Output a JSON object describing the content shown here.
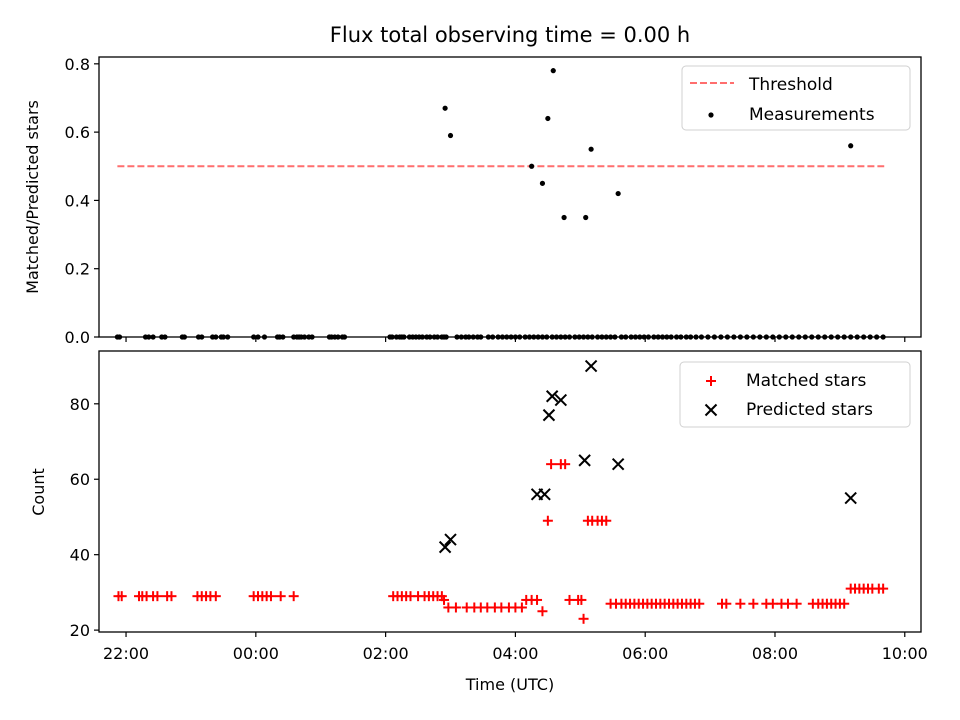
{
  "chart_data": [
    {
      "type": "scatter",
      "title": "Flux total observing time = 0.00 h",
      "xlabel": "",
      "ylabel": "Matched/Predicted stars",
      "ylim": [
        0,
        0.82
      ],
      "xlim": [
        "21:35",
        "10:15"
      ],
      "yticks": [
        "0.0",
        "0.2",
        "0.4",
        "0.6",
        "0.8"
      ],
      "ytick_values": [
        0,
        0.2,
        0.4,
        0.6,
        0.8
      ],
      "legend": {
        "placement": "top-right"
      },
      "grid": false,
      "threshold": {
        "name": "Threshold",
        "value": 0.5,
        "x_range": [
          "21:52",
          "09:41"
        ],
        "color": "#ff6e6e"
      },
      "series": [
        {
          "name": "Measurements",
          "color": "#000000",
          "x": [
            "21:52",
            "21:54",
            "22:18",
            "22:21",
            "22:25",
            "22:33",
            "22:36",
            "22:52",
            "22:54",
            "23:07",
            "23:10",
            "23:20",
            "23:23",
            "23:28",
            "23:30",
            "23:34",
            "23:58",
            "00:02",
            "00:08",
            "00:20",
            "00:22",
            "00:25",
            "00:35",
            "00:38",
            "00:40",
            "00:42",
            "00:45",
            "00:49",
            "00:52",
            "01:08",
            "01:10",
            "01:13",
            "01:16",
            "01:20",
            "01:22",
            "02:04",
            "02:06",
            "02:10",
            "02:13",
            "02:15",
            "02:17",
            "02:22",
            "02:25",
            "02:28",
            "02:31",
            "02:34",
            "02:38",
            "02:41",
            "02:45",
            "02:48",
            "02:52",
            "02:54",
            "02:56",
            "03:06",
            "03:10",
            "03:14",
            "03:17",
            "03:21",
            "03:25",
            "03:28",
            "03:35",
            "03:39",
            "03:44",
            "03:48",
            "03:52",
            "03:56",
            "04:00",
            "04:04",
            "04:09",
            "04:13",
            "04:17",
            "04:21",
            "04:25",
            "04:29",
            "04:34",
            "04:38",
            "04:42",
            "04:46",
            "04:50",
            "04:55",
            "04:59",
            "05:03",
            "05:07",
            "05:11",
            "05:16",
            "05:20",
            "05:24",
            "05:28",
            "05:32",
            "05:38",
            "05:42",
            "05:47",
            "05:51",
            "05:55",
            "05:59",
            "06:03",
            "06:08",
            "06:12",
            "06:16",
            "06:20",
            "06:24",
            "06:29",
            "06:33",
            "06:38",
            "06:42",
            "06:47",
            "06:52",
            "06:58",
            "07:04",
            "07:10",
            "07:16",
            "07:22",
            "07:28",
            "07:34",
            "07:40",
            "07:46",
            "07:52",
            "07:58",
            "08:04",
            "08:10",
            "08:16",
            "08:22",
            "08:28",
            "08:34",
            "08:40",
            "08:46",
            "08:52",
            "08:58",
            "09:04",
            "09:10",
            "09:16",
            "09:22",
            "09:28",
            "09:34",
            "09:40",
            "02:55",
            "03:00",
            "04:15",
            "04:25",
            "04:30",
            "04:35",
            "04:45",
            "05:05",
            "05:10",
            "05:35",
            "09:10"
          ],
          "y": [
            0,
            0,
            0,
            0,
            0,
            0,
            0,
            0,
            0,
            0,
            0,
            0,
            0,
            0,
            0,
            0,
            0,
            0,
            0,
            0,
            0,
            0,
            0,
            0,
            0,
            0,
            0,
            0,
            0,
            0,
            0,
            0,
            0,
            0,
            0,
            0,
            0,
            0,
            0,
            0,
            0,
            0,
            0,
            0,
            0,
            0,
            0,
            0,
            0,
            0,
            0,
            0,
            0,
            0,
            0,
            0,
            0,
            0,
            0,
            0,
            0,
            0,
            0,
            0,
            0,
            0,
            0,
            0,
            0,
            0,
            0,
            0,
            0,
            0,
            0,
            0,
            0,
            0,
            0,
            0,
            0,
            0,
            0,
            0,
            0,
            0,
            0,
            0,
            0,
            0,
            0,
            0,
            0,
            0,
            0,
            0,
            0,
            0,
            0,
            0,
            0,
            0,
            0,
            0,
            0,
            0,
            0,
            0,
            0,
            0,
            0,
            0,
            0,
            0,
            0,
            0,
            0,
            0,
            0,
            0,
            0,
            0,
            0,
            0,
            0,
            0,
            0,
            0,
            0,
            0,
            0,
            0,
            0,
            0,
            0,
            0.67,
            0.59,
            0.5,
            0.45,
            0.64,
            0.78,
            0.35,
            0.35,
            0.55,
            0.42,
            0.56
          ]
        }
      ]
    },
    {
      "type": "scatter",
      "title": "",
      "xlabel": "Time (UTC)",
      "ylabel": "Count",
      "ylim": [
        19.5,
        94
      ],
      "xlim": [
        "21:35",
        "10:15"
      ],
      "xticks": [
        "22:00",
        "00:00",
        "02:00",
        "04:00",
        "06:00",
        "08:00",
        "10:00"
      ],
      "yticks": [
        "20",
        "40",
        "60",
        "80"
      ],
      "ytick_values": [
        20,
        40,
        60,
        80
      ],
      "legend": {
        "placement": "top-right"
      },
      "grid": false,
      "series": [
        {
          "name": "Matched stars",
          "marker": "plus",
          "color": "#ff0000",
          "x": [
            "21:53",
            "21:56",
            "22:12",
            "22:15",
            "22:19",
            "22:25",
            "22:29",
            "22:38",
            "22:42",
            "23:06",
            "23:10",
            "23:14",
            "23:18",
            "23:23",
            "23:58",
            "24:02",
            "24:06",
            "24:10",
            "24:14",
            "24:23",
            "24:35",
            "02:07",
            "02:11",
            "02:15",
            "02:19",
            "02:23",
            "02:30",
            "02:36",
            "02:40",
            "02:44",
            "02:48",
            "02:52",
            "02:54",
            "02:58",
            "03:05",
            "03:15",
            "03:22",
            "03:28",
            "03:34",
            "03:41",
            "03:47",
            "03:54",
            "04:00",
            "04:06",
            "04:10",
            "04:15",
            "04:20",
            "04:25",
            "04:30",
            "04:33",
            "04:42",
            "04:46",
            "04:50",
            "04:58",
            "05:01",
            "05:03",
            "05:07",
            "05:11",
            "05:16",
            "05:20",
            "05:24",
            "05:28",
            "05:33",
            "05:38",
            "05:42",
            "05:46",
            "05:50",
            "05:54",
            "05:58",
            "06:02",
            "06:06",
            "06:10",
            "06:14",
            "06:18",
            "06:22",
            "06:26",
            "06:30",
            "06:34",
            "06:38",
            "06:42",
            "06:46",
            "06:50",
            "07:11",
            "07:15",
            "07:28",
            "07:40",
            "07:52",
            "07:58",
            "08:06",
            "08:12",
            "08:20",
            "08:35",
            "08:40",
            "08:44",
            "08:48",
            "08:52",
            "08:56",
            "09:00",
            "09:04",
            "09:10",
            "09:14",
            "09:18",
            "09:22",
            "09:26",
            "09:30",
            "09:36",
            "09:40"
          ],
          "y": [
            29,
            29,
            29,
            29,
            29,
            29,
            29,
            29,
            29,
            29,
            29,
            29,
            29,
            29,
            29,
            29,
            29,
            29,
            29,
            29,
            29,
            29,
            29,
            29,
            29,
            29,
            29,
            29,
            29,
            29,
            29,
            29,
            28,
            26,
            26,
            26,
            26,
            26,
            26,
            26,
            26,
            26,
            26,
            26,
            28,
            28,
            28,
            25,
            49,
            64,
            64,
            64,
            28,
            28,
            28,
            23,
            49,
            49,
            49,
            49,
            49,
            27,
            27,
            27,
            27,
            27,
            27,
            27,
            27,
            27,
            27,
            27,
            27,
            27,
            27,
            27,
            27,
            27,
            27,
            27,
            27,
            27,
            27,
            27,
            27,
            27,
            27,
            27,
            27,
            27,
            27,
            27,
            27,
            27,
            27,
            27,
            27,
            27,
            27,
            31,
            31,
            31,
            31,
            31,
            31,
            31,
            31
          ]
        },
        {
          "name": "Predicted stars",
          "marker": "x",
          "color": "#000000",
          "x": [
            "02:55",
            "03:00",
            "04:20",
            "04:27",
            "04:31",
            "04:34",
            "04:42",
            "05:04",
            "05:10",
            "05:35",
            "09:10"
          ],
          "y": [
            42,
            44,
            56,
            56,
            77,
            82,
            81,
            65,
            90,
            64,
            55
          ]
        }
      ]
    }
  ]
}
